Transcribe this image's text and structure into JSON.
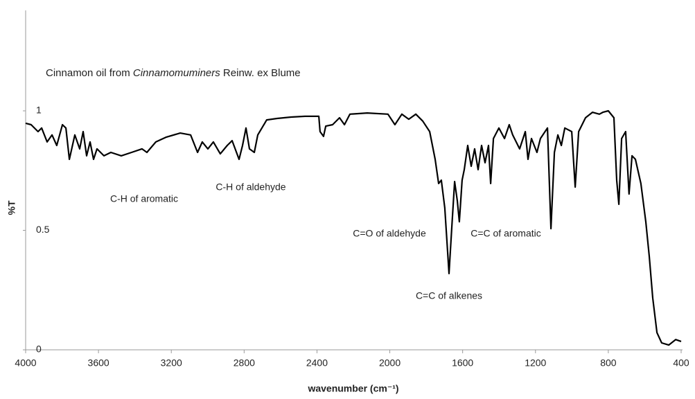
{
  "chart_data": {
    "type": "line",
    "title": [
      "Cinnamon oil  from ",
      "Cinnamomuminers",
      " Reinw. ex Blume"
    ],
    "x_label": "wavenumber (cm⁻¹)",
    "y_label": "%T",
    "xlim": [
      4000,
      400
    ],
    "ylim": [
      0,
      1
    ],
    "xticks": [
      4000,
      3600,
      3200,
      2800,
      2400,
      2000,
      1600,
      1200,
      800,
      400
    ],
    "yticks": [
      0,
      0.5,
      1
    ],
    "annotations": [
      "C-H  of aromatic",
      "C-H  of aldehyde",
      "C=O  of aldehyde",
      "C=C  of alkenes",
      "C=C of aromatic"
    ],
    "x": [
      4000,
      3970,
      3932,
      3912,
      3882,
      3855,
      3829,
      3798,
      3779,
      3760,
      3730,
      3703,
      3684,
      3665,
      3646,
      3627,
      3608,
      3570,
      3532,
      3475,
      3418,
      3361,
      3334,
      3285,
      3227,
      3151,
      3094,
      3056,
      3030,
      2999,
      2969,
      2931,
      2893,
      2866,
      2828,
      2809,
      2790,
      2771,
      2744,
      2725,
      2676,
      2619,
      2542,
      2466,
      2390,
      2383,
      2364,
      2352,
      2314,
      2276,
      2249,
      2219,
      2124,
      2010,
      1972,
      1934,
      1896,
      1857,
      1819,
      1781,
      1751,
      1732,
      1717,
      1698,
      1675,
      1660,
      1644,
      1629,
      1618,
      1603,
      1591,
      1572,
      1553,
      1534,
      1515,
      1496,
      1477,
      1458,
      1446,
      1431,
      1401,
      1370,
      1344,
      1325,
      1287,
      1256,
      1241,
      1222,
      1192,
      1173,
      1134,
      1115,
      1096,
      1077,
      1058,
      1039,
      1001,
      982,
      963,
      925,
      887,
      849,
      830,
      800,
      769,
      754,
      742,
      727,
      705,
      686,
      670,
      651,
      621,
      594,
      575,
      556,
      533,
      507,
      468,
      430,
      400
    ],
    "series": [
      {
        "color": "#000000",
        "values": [
          0.948,
          0.942,
          0.913,
          0.928,
          0.87,
          0.899,
          0.855,
          0.942,
          0.928,
          0.797,
          0.899,
          0.841,
          0.913,
          0.812,
          0.87,
          0.797,
          0.841,
          0.812,
          0.826,
          0.812,
          0.826,
          0.841,
          0.826,
          0.87,
          0.89,
          0.907,
          0.899,
          0.826,
          0.87,
          0.841,
          0.87,
          0.82,
          0.855,
          0.875,
          0.797,
          0.855,
          0.928,
          0.841,
          0.826,
          0.899,
          0.962,
          0.968,
          0.974,
          0.977,
          0.977,
          0.913,
          0.893,
          0.936,
          0.942,
          0.971,
          0.942,
          0.986,
          0.991,
          0.986,
          0.942,
          0.986,
          0.965,
          0.986,
          0.957,
          0.913,
          0.797,
          0.696,
          0.71,
          0.594,
          0.319,
          0.507,
          0.704,
          0.623,
          0.536,
          0.71,
          0.754,
          0.855,
          0.768,
          0.841,
          0.754,
          0.855,
          0.783,
          0.855,
          0.696,
          0.884,
          0.928,
          0.884,
          0.942,
          0.899,
          0.841,
          0.913,
          0.797,
          0.884,
          0.826,
          0.884,
          0.928,
          0.507,
          0.826,
          0.899,
          0.855,
          0.928,
          0.913,
          0.681,
          0.913,
          0.971,
          0.994,
          0.986,
          0.994,
          1.0,
          0.971,
          0.71,
          0.609,
          0.884,
          0.913,
          0.652,
          0.812,
          0.797,
          0.696,
          0.536,
          0.391,
          0.217,
          0.072,
          0.029,
          0.02,
          0.043,
          0.035
        ]
      }
    ]
  }
}
